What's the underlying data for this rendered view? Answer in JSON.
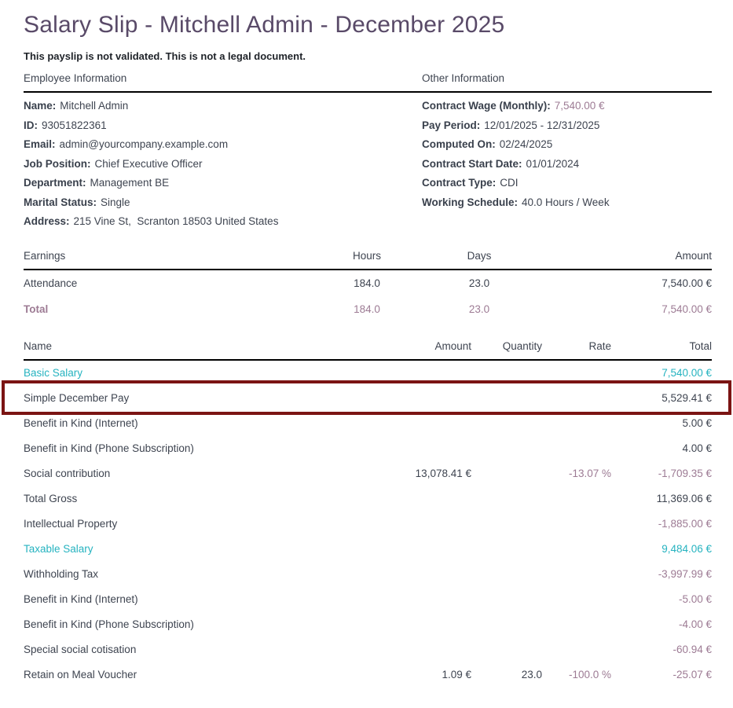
{
  "page": {
    "title": "Salary Slip - Mitchell Admin - December 2025",
    "disclaimer": "This payslip is not validated. This is not a legal document."
  },
  "colors": {
    "title": "#594a68",
    "text": "#3e4450",
    "muted_value": "#9d7b94",
    "teal_value": "#26b3c0",
    "highlight_border": "#7b1413"
  },
  "employee_info": {
    "heading": "Employee Information",
    "fields": [
      {
        "label": "Name:",
        "value": "Mitchell Admin",
        "classes": {}
      },
      {
        "label": "ID:",
        "value": "93051822361",
        "classes": {}
      },
      {
        "label": "Email:",
        "value": "admin@yourcompany.example.com",
        "classes": {}
      },
      {
        "label": "Job Position:",
        "value": "Chief Executive Officer",
        "classes": {}
      },
      {
        "label": "Department:",
        "value": "Management BE",
        "classes": {}
      },
      {
        "label": "Marital Status:",
        "value": "Single",
        "classes": {}
      },
      {
        "label": "Address:",
        "value": "215 Vine St,  Scranton 18503 United States",
        "classes": {}
      }
    ]
  },
  "other_info": {
    "heading": "Other Information",
    "fields": [
      {
        "label": "Contract Wage (Monthly):",
        "value": "7,540.00 €",
        "classes": {
          "value": "muted"
        }
      },
      {
        "label": "Pay Period:",
        "value": "12/01/2025 - 12/31/2025",
        "classes": {}
      },
      {
        "label": "Computed On:",
        "value": "02/24/2025",
        "classes": {}
      },
      {
        "label": "Contract Start Date:",
        "value": "01/01/2024",
        "classes": {}
      },
      {
        "label": "Contract Type:",
        "value": "CDI",
        "classes": {}
      },
      {
        "label": "Working Schedule:",
        "value": "40.0 Hours / Week",
        "classes": {}
      }
    ]
  },
  "earnings_table": {
    "headers": {
      "name": "Earnings",
      "hours": "Hours",
      "days": "Days",
      "amount": "Amount"
    },
    "rows": [
      {
        "name": "Attendance",
        "hours": "184.0",
        "days": "23.0",
        "amount": "7,540.00 €",
        "row_class": "",
        "highlighted": false,
        "classes": {}
      },
      {
        "name": "Total",
        "hours": "184.0",
        "days": "23.0",
        "amount": "7,540.00 €",
        "row_class": "total-row",
        "highlighted": false,
        "classes": {}
      }
    ]
  },
  "lines_table": {
    "headers": {
      "name": "Name",
      "amount": "Amount",
      "quantity": "Quantity",
      "rate": "Rate",
      "total": "Total"
    },
    "rows": [
      {
        "name": "Basic Salary",
        "amount": "",
        "quantity": "",
        "rate": "",
        "total": "7,540.00 €",
        "row_class": "",
        "highlighted": false,
        "classes": {
          "name": "teal",
          "total": "teal"
        }
      },
      {
        "name": "Simple December Pay",
        "amount": "",
        "quantity": "",
        "rate": "",
        "total": "5,529.41 €",
        "row_class": "",
        "highlighted": true,
        "classes": {}
      },
      {
        "name": "Benefit in Kind (Internet)",
        "amount": "",
        "quantity": "",
        "rate": "",
        "total": "5.00 €",
        "row_class": "",
        "highlighted": false,
        "classes": {}
      },
      {
        "name": "Benefit in Kind (Phone Subscription)",
        "amount": "",
        "quantity": "",
        "rate": "",
        "total": "4.00 €",
        "row_class": "",
        "highlighted": false,
        "classes": {}
      },
      {
        "name": "Social contribution",
        "amount": "13,078.41 €",
        "quantity": "",
        "rate": "-13.07 %",
        "total": "-1,709.35 €",
        "row_class": "",
        "highlighted": false,
        "classes": {
          "rate": "muted",
          "total": "muted"
        }
      },
      {
        "name": "Total Gross",
        "amount": "",
        "quantity": "",
        "rate": "",
        "total": "11,369.06 €",
        "row_class": "",
        "highlighted": false,
        "classes": {}
      },
      {
        "name": "Intellectual Property",
        "amount": "",
        "quantity": "",
        "rate": "",
        "total": "-1,885.00 €",
        "row_class": "",
        "highlighted": false,
        "classes": {
          "total": "muted"
        }
      },
      {
        "name": "Taxable Salary",
        "amount": "",
        "quantity": "",
        "rate": "",
        "total": "9,484.06 €",
        "row_class": "",
        "highlighted": false,
        "classes": {
          "name": "teal",
          "total": "teal"
        }
      },
      {
        "name": "Withholding Tax",
        "amount": "",
        "quantity": "",
        "rate": "",
        "total": "-3,997.99 €",
        "row_class": "",
        "highlighted": false,
        "classes": {
          "total": "muted"
        }
      },
      {
        "name": "Benefit in Kind (Internet)",
        "amount": "",
        "quantity": "",
        "rate": "",
        "total": "-5.00 €",
        "row_class": "",
        "highlighted": false,
        "classes": {
          "total": "muted"
        }
      },
      {
        "name": "Benefit in Kind (Phone Subscription)",
        "amount": "",
        "quantity": "",
        "rate": "",
        "total": "-4.00 €",
        "row_class": "",
        "highlighted": false,
        "classes": {
          "total": "muted"
        }
      },
      {
        "name": "Special social cotisation",
        "amount": "",
        "quantity": "",
        "rate": "",
        "total": "-60.94 €",
        "row_class": "",
        "highlighted": false,
        "classes": {
          "total": "muted"
        }
      },
      {
        "name": "Retain on Meal Voucher",
        "amount": "1.09 €",
        "quantity": "23.0",
        "rate": "-100.0 %",
        "total": "-25.07 €",
        "row_class": "",
        "highlighted": false,
        "classes": {
          "rate": "muted",
          "total": "muted"
        }
      }
    ]
  }
}
